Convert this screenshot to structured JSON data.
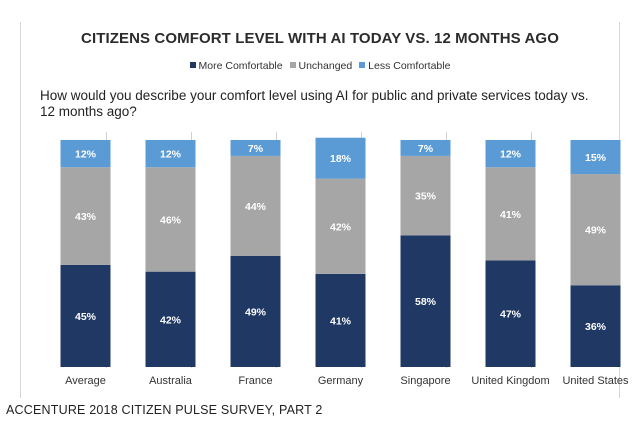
{
  "chart_data": {
    "type": "bar",
    "stacked": true,
    "normalized": true,
    "title": "CITIZENS COMFORT LEVEL WITH AI TODAY VS. 12 MONTHS AGO",
    "question": "How would you describe your comfort level using AI for public and private services today vs. 12 months ago?",
    "categories": [
      "Average",
      "Australia",
      "France",
      "Germany",
      "Singapore",
      "United Kingdom",
      "United States"
    ],
    "series": [
      {
        "name": "More Comfortable",
        "color": "#1f3864",
        "values": [
          45,
          42,
          49,
          41,
          58,
          47,
          36
        ],
        "labels": [
          "45%",
          "42%",
          "49%",
          "41%",
          "58%",
          "47%",
          "36%"
        ]
      },
      {
        "name": "Unchanged",
        "color": "#a6a6a6",
        "values": [
          43,
          46,
          44,
          42,
          35,
          41,
          49
        ],
        "labels": [
          "43%",
          "46%",
          "44%",
          "42%",
          "35%",
          "41%",
          "49%"
        ]
      },
      {
        "name": "Less Comfortable",
        "color": "#5b9bd5",
        "values": [
          12,
          12,
          7,
          18,
          7,
          12,
          15
        ],
        "labels": [
          "12%",
          "12%",
          "7%",
          "18%",
          "7%",
          "12%",
          "15%"
        ]
      }
    ],
    "legend_position": "top-center",
    "ylim": [
      0,
      100
    ]
  },
  "legend": {
    "items": [
      {
        "label": "More Comfortable",
        "color": "#1f3864"
      },
      {
        "label": "Unchanged",
        "color": "#a6a6a6"
      },
      {
        "label": "Less Comfortable",
        "color": "#5b9bd5"
      }
    ]
  },
  "footer": {
    "source": "ACCENTURE 2018 CITIZEN PULSE SURVEY, PART 2"
  }
}
